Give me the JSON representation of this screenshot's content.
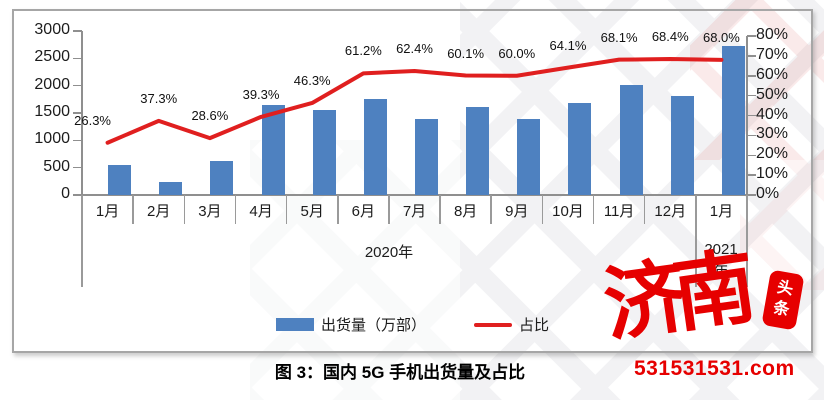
{
  "chart_data": {
    "type": "bar",
    "title": "图 3：国内 5G 手机出货量及占比",
    "categories": [
      "1月",
      "2月",
      "3月",
      "4月",
      "5月",
      "6月",
      "7月",
      "8月",
      "9月",
      "10月",
      "11月",
      "12月",
      "1月"
    ],
    "category_groups": [
      {
        "label": "2020年",
        "span": 12
      },
      {
        "label": "2021年",
        "span": 1
      }
    ],
    "series": [
      {
        "name": "出货量（万部）",
        "kind": "bar",
        "axis": "left",
        "color": "#4e81c0",
        "values": [
          547,
          238,
          622,
          1638,
          1564,
          1751,
          1391,
          1617,
          1399,
          1676,
          2014,
          1820,
          2728
        ]
      },
      {
        "name": "占比",
        "kind": "line",
        "axis": "right",
        "color": "#e01f1f",
        "values": [
          26.3,
          37.3,
          28.6,
          39.3,
          46.3,
          61.2,
          62.4,
          60.1,
          60.0,
          64.1,
          68.1,
          68.4,
          68.0
        ],
        "labels": [
          "26.3%",
          "37.3%",
          "28.6%",
          "39.3%",
          "46.3%",
          "61.2%",
          "62.4%",
          "60.1%",
          "60.0%",
          "64.1%",
          "68.1%",
          "68.4%",
          "68.0%"
        ]
      }
    ],
    "left_axis": {
      "min": 0,
      "max": 3000,
      "step": 500,
      "ticks": [
        "3000",
        "2500",
        "2000",
        "1500",
        "1000",
        "500",
        "0"
      ]
    },
    "right_axis": {
      "min": 0,
      "max": 80,
      "step": 10,
      "ticks": [
        "80%",
        "70%",
        "60%",
        "50%",
        "40%",
        "30%",
        "20%",
        "10%",
        "0%"
      ]
    },
    "legend_position": "bottom",
    "grid": false
  },
  "branding": {
    "logo_main": "济南",
    "logo_badge": "头条",
    "url": "531531531.com",
    "color": "#e60000"
  }
}
